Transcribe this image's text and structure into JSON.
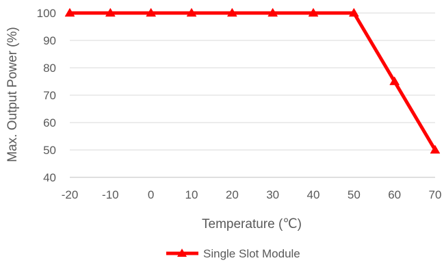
{
  "chart_data": {
    "type": "line",
    "title": "",
    "xlabel": "Temperature (℃)",
    "ylabel": "Max. Output Power (%)",
    "x": [
      -20,
      -10,
      0,
      10,
      20,
      30,
      40,
      50,
      60,
      70
    ],
    "xticks": [
      "-20",
      "-10",
      "0",
      "10",
      "20",
      "30",
      "40",
      "50",
      "60",
      "70"
    ],
    "yticks": [
      "40",
      "50",
      "60",
      "70",
      "80",
      "90",
      "100"
    ],
    "xlim": [
      -20,
      70
    ],
    "ylim": [
      40,
      100
    ],
    "grid": true,
    "legend_position": "bottom",
    "series": [
      {
        "name": "Single Slot Module",
        "color": "#ff0000",
        "marker": "triangle",
        "values": [
          100,
          100,
          100,
          100,
          100,
          100,
          100,
          100,
          75,
          50
        ]
      }
    ]
  }
}
